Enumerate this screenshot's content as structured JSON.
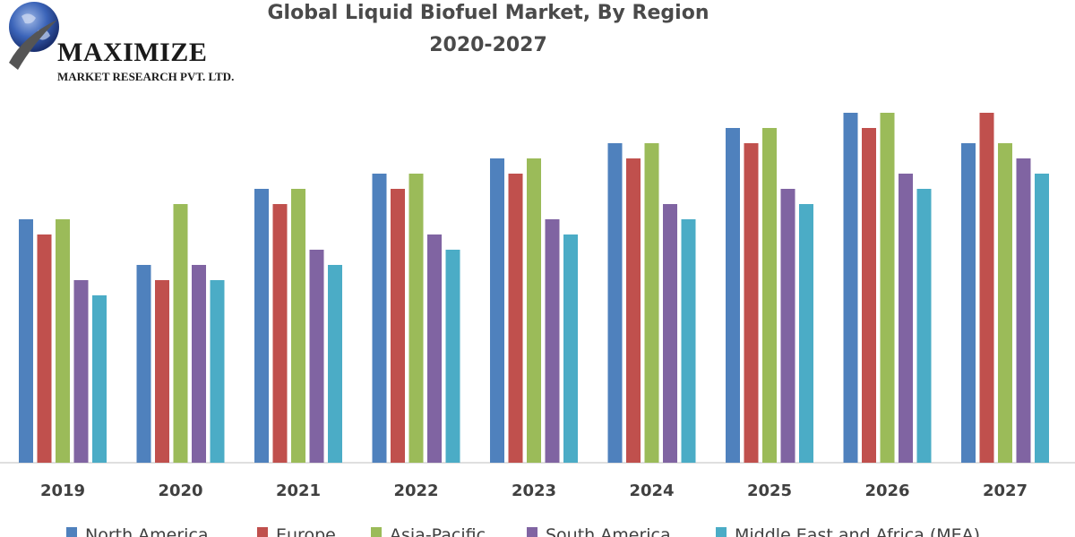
{
  "logo": {
    "icon": "globe-icon",
    "name": "MAXIMIZE",
    "subtitle": "MARKET RESEARCH PVT. LTD."
  },
  "chart_data": {
    "type": "bar",
    "title": "Global Liquid Biofuel Market, By Region",
    "subtitle": "2020-2027",
    "xlabel": "",
    "ylabel": "",
    "grid": false,
    "legend": "bottom",
    "categories": [
      "2019",
      "2020",
      "2021",
      "2022",
      "2023",
      "2024",
      "2025",
      "2026",
      "2027"
    ],
    "series": [
      {
        "name": "North America",
        "color": "#4f81bd",
        "values": [
          16,
          13,
          18,
          19,
          20,
          21,
          22,
          23,
          21
        ]
      },
      {
        "name": "Europe",
        "color": "#c0504d",
        "values": [
          15,
          12,
          17,
          18,
          19,
          20,
          21,
          22,
          23
        ]
      },
      {
        "name": "Asia-Pacific",
        "color": "#9bbb59",
        "values": [
          16,
          17,
          18,
          19,
          20,
          21,
          22,
          23,
          21
        ]
      },
      {
        "name": "South America",
        "color": "#8064a2",
        "values": [
          12,
          13,
          14,
          15,
          16,
          17,
          18,
          19,
          20
        ]
      },
      {
        "name": "Middle East and Africa (MEA)",
        "color": "#4bacc6",
        "values": [
          11,
          12,
          13,
          14,
          15,
          16,
          17,
          18,
          19
        ]
      }
    ],
    "ylim": [
      0,
      23
    ]
  }
}
